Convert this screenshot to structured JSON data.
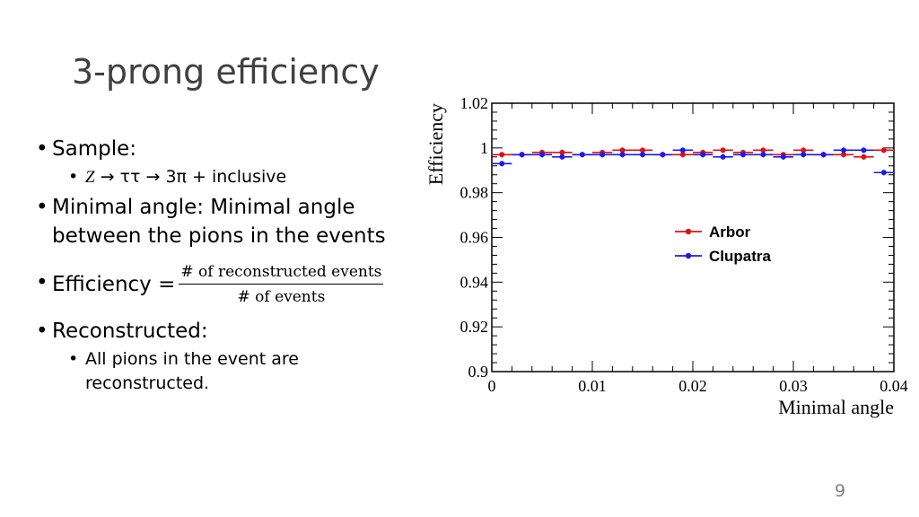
{
  "slide": {
    "title": "3-prong efficiency",
    "page_number": "9"
  },
  "bullets": {
    "sample": "Sample:",
    "sample_sub": {
      "z": "Z",
      "decay": " → ττ → 3π + inclusive"
    },
    "minimal_angle": "Minimal angle: Minimal angle between the pions in the events",
    "efficiency_label": "Efficiency =",
    "efficiency_numerator": "# of reconstructed events",
    "efficiency_denominator": "# of events",
    "reconstructed": "Reconstructed:",
    "reconstructed_sub": "All pions in the event are reconstructed."
  },
  "chart_data": {
    "type": "scatter",
    "xlabel": "Minimal angle",
    "ylabel": "Efficiency",
    "xlim": [
      0,
      0.04
    ],
    "ylim": [
      0.9,
      1.02
    ],
    "xticks": [
      "0",
      "0.01",
      "0.02",
      "0.03",
      "0.04"
    ],
    "yticks": [
      "0.9",
      "0.92",
      "0.94",
      "0.96",
      "0.98",
      "1",
      "1.02"
    ],
    "legend_position": "center-right",
    "series": [
      {
        "name": "Arbor",
        "color": "#e01010",
        "x": [
          0.001,
          0.003,
          0.005,
          0.007,
          0.009,
          0.011,
          0.013,
          0.015,
          0.017,
          0.019,
          0.021,
          0.023,
          0.025,
          0.027,
          0.029,
          0.031,
          0.033,
          0.035,
          0.037,
          0.039
        ],
        "y": [
          0.997,
          0.997,
          0.998,
          0.998,
          0.997,
          0.998,
          0.999,
          0.999,
          0.997,
          0.997,
          0.998,
          0.999,
          0.998,
          0.999,
          0.997,
          0.999,
          0.997,
          0.997,
          0.996,
          0.999
        ]
      },
      {
        "name": "Clupatra",
        "color": "#1a1aee",
        "x": [
          0.001,
          0.003,
          0.005,
          0.007,
          0.009,
          0.011,
          0.013,
          0.015,
          0.017,
          0.019,
          0.021,
          0.023,
          0.025,
          0.027,
          0.029,
          0.031,
          0.033,
          0.035,
          0.037,
          0.039
        ],
        "y": [
          0.993,
          0.997,
          0.997,
          0.996,
          0.997,
          0.997,
          0.997,
          0.997,
          0.997,
          0.999,
          0.997,
          0.996,
          0.997,
          0.997,
          0.996,
          0.997,
          0.997,
          0.999,
          0.999,
          0.989
        ]
      }
    ]
  }
}
